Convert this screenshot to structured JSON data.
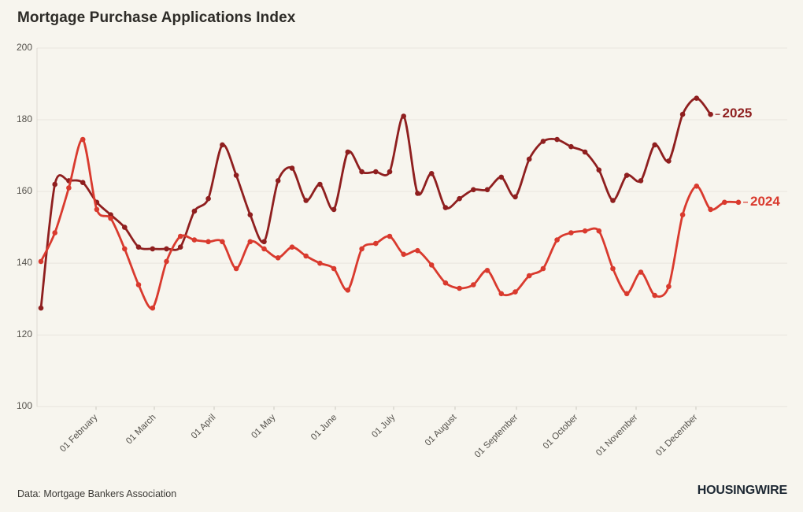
{
  "title": "Mortgage Purchase Applications Index",
  "footer": {
    "source": "Data: Mortgage Bankers Association",
    "brand": "HOUSINGWIRE"
  },
  "colors": {
    "background": "#f7f5ee",
    "grid": "#e8e5dd",
    "axis_line": "#ddd9d1",
    "tick": "#c9c6be",
    "axis_text": "#55524c",
    "title_text": "#2d2b27",
    "source_text": "#3b3935",
    "brand_text": "#1d2833"
  },
  "chart_data": {
    "type": "line",
    "title": "Mortgage Purchase Applications Index",
    "xlabel": "",
    "ylabel": "",
    "ylim": [
      100,
      200
    ],
    "y_ticks": [
      200,
      180,
      160,
      140,
      120,
      100
    ],
    "x_tick_labels": [
      "01 February",
      "01 March",
      "01 April",
      "01 May",
      "01 June",
      "01 July",
      "01 August",
      "01 September",
      "01 October",
      "01 November",
      "01 December"
    ],
    "grid": "horizontal",
    "legend_position": "line-end-right",
    "frequency": "weekly",
    "series": [
      {
        "name": "2025",
        "color": "#8f1f1f",
        "values": [
          127.5,
          162,
          163,
          162.5,
          157,
          153.5,
          150,
          144.5,
          144,
          144,
          144.5,
          154.5,
          158,
          173,
          164.5,
          153.5,
          146,
          163,
          166.5,
          157.5,
          162,
          155,
          171,
          165.5,
          165.5,
          165.5,
          181,
          159.5,
          165,
          155.5,
          158,
          160.5,
          160.5,
          164,
          158.5,
          169,
          174,
          174.5,
          172.5,
          171,
          166,
          157.5,
          164.5,
          163,
          173,
          168.5,
          181.5,
          186,
          181.5
        ]
      },
      {
        "name": "2024",
        "color": "#d93a2e",
        "values": [
          140.5,
          148.5,
          161,
          174.5,
          155,
          152.5,
          144,
          134,
          127.5,
          140.5,
          147.5,
          146.5,
          146,
          146,
          138.5,
          146,
          144,
          141.5,
          144.5,
          142,
          140,
          138.5,
          132.5,
          144,
          145.5,
          147.5,
          142.5,
          143.5,
          139.5,
          134.5,
          133,
          134,
          138,
          131.5,
          132,
          136.5,
          138.5,
          146.5,
          148.5,
          149,
          149,
          138.5,
          131.5,
          137.5,
          131,
          133.5,
          153.5,
          161.5,
          155,
          157,
          157
        ]
      }
    ]
  }
}
